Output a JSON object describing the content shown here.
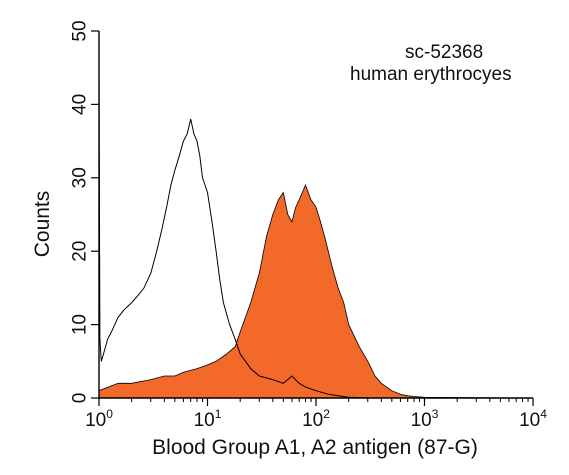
{
  "chart_data": {
    "type": "area",
    "title": "",
    "xlabel": "Blood Group A1, A2 antigen (87-G)",
    "ylabel": "Counts",
    "x_scale": "log",
    "xlim": [
      1,
      10000
    ],
    "ylim": [
      0,
      50
    ],
    "x_ticks": [
      {
        "value": 1,
        "base": "10",
        "exp": "0"
      },
      {
        "value": 10,
        "base": "10",
        "exp": "1"
      },
      {
        "value": 100,
        "base": "10",
        "exp": "2"
      },
      {
        "value": 1000,
        "base": "10",
        "exp": "3"
      },
      {
        "value": 10000,
        "base": "10",
        "exp": "4"
      }
    ],
    "y_ticks": [
      0,
      10,
      20,
      30,
      40,
      50
    ],
    "annotations": [
      "sc-52368",
      "human erythrocyes"
    ],
    "grid": false,
    "legend": "none",
    "series": [
      {
        "style": "outline",
        "color": "#000000",
        "x": [
          1,
          1.02,
          1.05,
          1.1,
          1.2,
          1.3,
          1.5,
          1.7,
          2,
          2.3,
          2.6,
          3,
          3.4,
          3.8,
          4.2,
          4.6,
          5,
          5.5,
          6,
          6.5,
          7,
          7.5,
          8,
          8.5,
          9,
          10,
          11,
          12,
          13,
          14,
          16,
          18,
          20,
          25,
          30,
          40,
          50,
          60,
          70,
          80,
          100,
          130,
          160,
          200,
          300
        ],
        "y": [
          45,
          8,
          5,
          6,
          8,
          9,
          11,
          12,
          13,
          14,
          15,
          17,
          20,
          23,
          26,
          29,
          31,
          33,
          35,
          36,
          38,
          36,
          35,
          33,
          30,
          28,
          24,
          20,
          16,
          13,
          10,
          8,
          6,
          4,
          3,
          2.5,
          2,
          3,
          2,
          1.5,
          1,
          0.5,
          0.3,
          0.1,
          0
        ]
      },
      {
        "style": "filled",
        "color": "#F2692A",
        "x": [
          1,
          1.5,
          2,
          3,
          4,
          5,
          6,
          8,
          10,
          12,
          15,
          18,
          20,
          25,
          30,
          35,
          40,
          45,
          50,
          55,
          60,
          65,
          70,
          80,
          90,
          100,
          110,
          120,
          140,
          160,
          180,
          200,
          250,
          300,
          350,
          400,
          500,
          600,
          700,
          800,
          1000,
          10000
        ],
        "y": [
          1,
          2,
          2,
          2.5,
          3,
          3,
          3.5,
          4,
          4.5,
          5,
          6,
          7,
          9,
          13,
          17,
          22,
          25,
          27,
          28,
          25,
          24,
          26,
          27,
          29,
          27,
          26,
          24,
          22,
          18,
          15,
          13,
          10,
          7,
          5,
          3,
          2,
          1,
          0.5,
          0.3,
          0.2,
          0.1,
          0
        ]
      }
    ]
  }
}
